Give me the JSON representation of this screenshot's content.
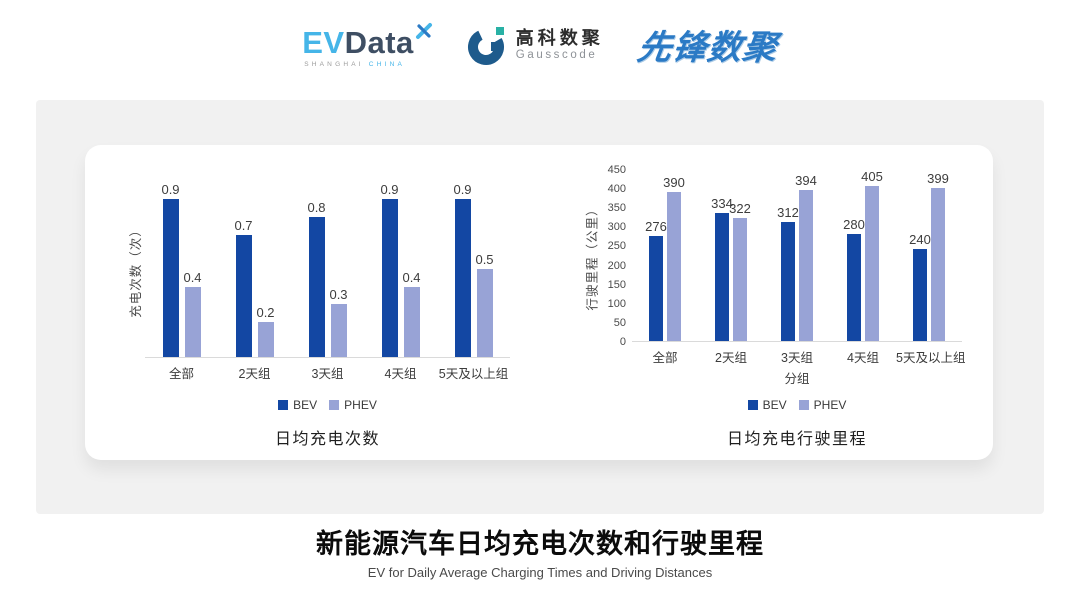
{
  "header": {
    "evdata": {
      "ev": "EV",
      "data": "Data",
      "sub_left": "SHANGHAI",
      "sub_right": "CHINA"
    },
    "gausscode": {
      "cn": "高科数聚",
      "en": "Gausscode"
    },
    "xianfeng": {
      "text": "先锋数聚"
    }
  },
  "colors": {
    "bev": "#1347A3",
    "phev": "#98A3D6",
    "panel_gray": "#F1F1F1",
    "baseline_gray": "#DADADA",
    "evdata_teal": "#45B5E8",
    "evdata_dark": "#3E4E63",
    "gausscode_blue": "#1E5B8C",
    "gausscode_teal": "#29B1A5",
    "xianfeng_blue": "#2B7AC5"
  },
  "chart_data": [
    {
      "type": "bar",
      "title": "日均充电次数",
      "xlabel": "",
      "ylabel": "充电次数（次）",
      "categories": [
        "全部",
        "2天组",
        "3天组",
        "4天组",
        "5天及以上组"
      ],
      "series": [
        {
          "name": "BEV",
          "color": "#1347A3",
          "values": [
            0.9,
            0.7,
            0.8,
            0.9,
            0.9
          ]
        },
        {
          "name": "PHEV",
          "color": "#98A3D6",
          "values": [
            0.4,
            0.2,
            0.3,
            0.4,
            0.5
          ]
        }
      ],
      "ylim": [
        0,
        1.0
      ],
      "yticks": [],
      "grid": false,
      "value_labels": true,
      "legend_position": "bottom"
    },
    {
      "type": "bar",
      "title": "日均充电行驶里程",
      "xlabel": "分组",
      "ylabel": "行驶里程（公里）",
      "categories": [
        "全部",
        "2天组",
        "3天组",
        "4天组",
        "5天及以上组"
      ],
      "series": [
        {
          "name": "BEV",
          "color": "#1347A3",
          "values": [
            276,
            334,
            312,
            280,
            240
          ]
        },
        {
          "name": "PHEV",
          "color": "#98A3D6",
          "values": [
            390,
            322,
            394,
            405,
            399
          ]
        }
      ],
      "ylim": [
        0,
        450
      ],
      "yticks": [
        0,
        50,
        100,
        150,
        200,
        250,
        300,
        350,
        400,
        450
      ],
      "grid": false,
      "value_labels": true,
      "legend_position": "bottom"
    }
  ],
  "footer": {
    "title": "新能源汽车日均充电次数和行驶里程",
    "subtitle": "EV for Daily Average Charging Times and Driving Distances"
  }
}
